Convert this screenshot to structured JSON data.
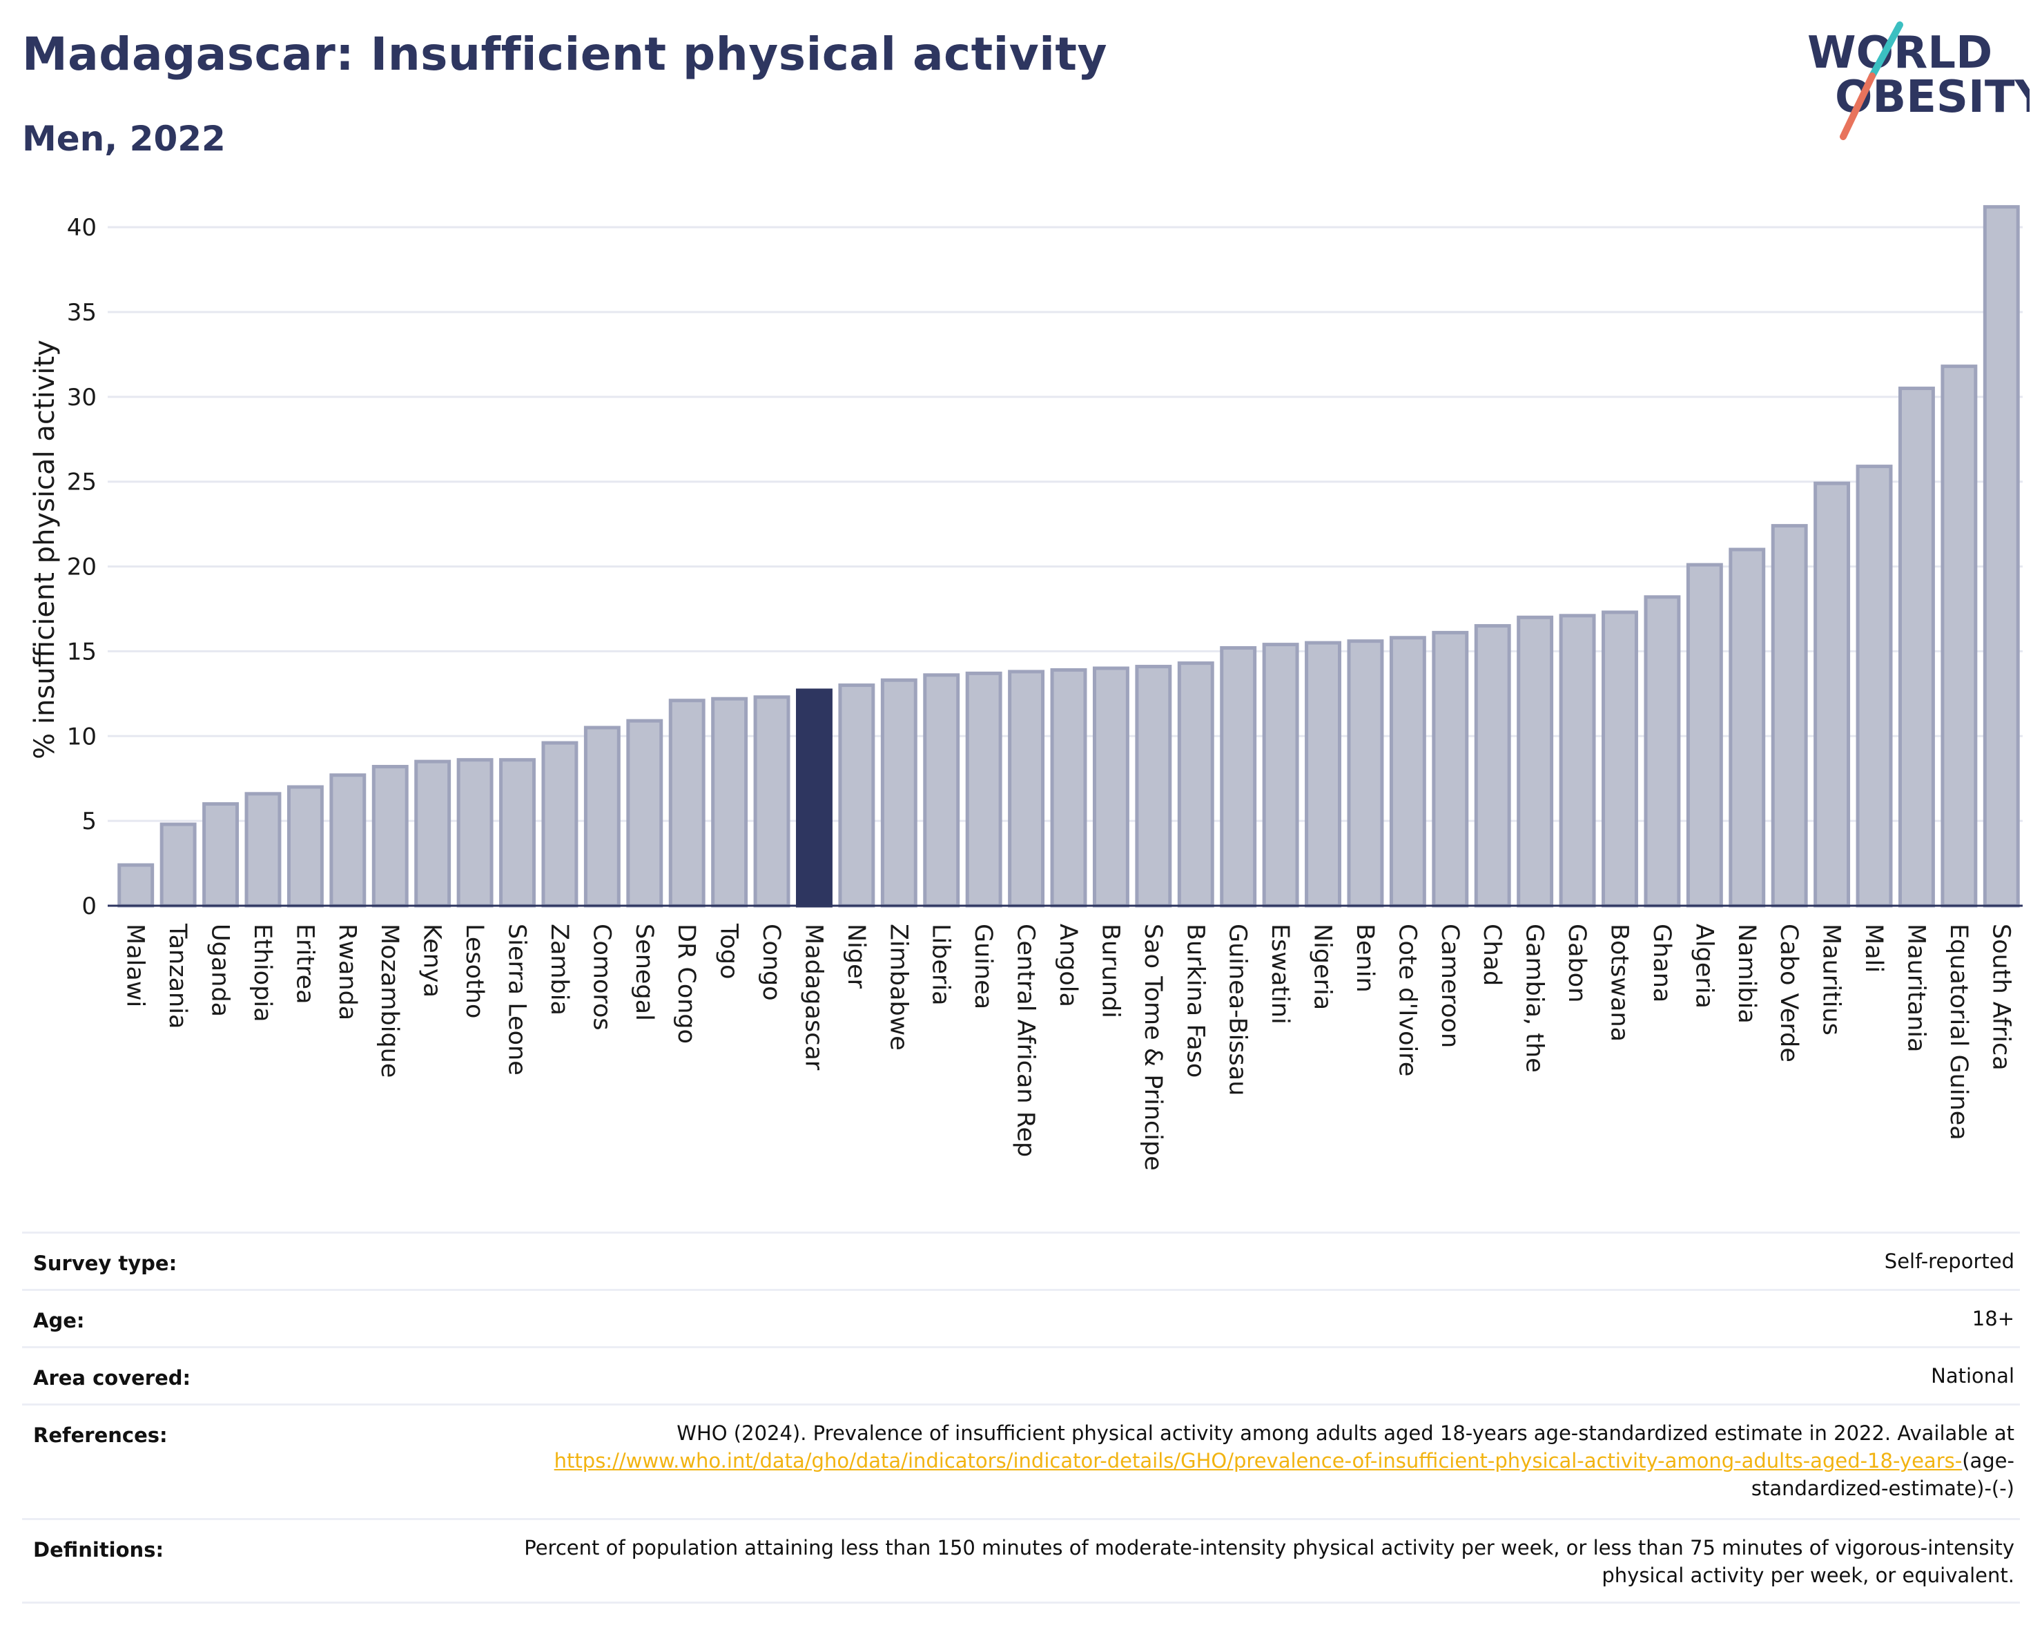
{
  "header": {
    "title": "Madagascar: Insufficient physical activity",
    "subtitle": "Men, 2022"
  },
  "logo": {
    "line1": "WORLD",
    "line2": "OBESITY",
    "colors": {
      "text": "#2e3660",
      "slash_top": "#3bbfc1",
      "slash_bottom": "#e8735c"
    }
  },
  "chart_data": {
    "type": "bar",
    "ylabel": "% insufficient physical activity",
    "ylim": [
      0,
      42
    ],
    "yticks": [
      0,
      5,
      10,
      15,
      20,
      25,
      30,
      35,
      40
    ],
    "grid": true,
    "highlight": "Madagascar",
    "colors": {
      "bar": "#bcc0cf",
      "bar_border": "#9ea3bc",
      "highlight": "#2e3660"
    },
    "categories": [
      "Malawi",
      "Tanzania",
      "Uganda",
      "Ethiopia",
      "Eritrea",
      "Rwanda",
      "Mozambique",
      "Kenya",
      "Lesotho",
      "Sierra Leone",
      "Zambia",
      "Comoros",
      "Senegal",
      "DR Congo",
      "Togo",
      "Congo",
      "Madagascar",
      "Niger",
      "Zimbabwe",
      "Liberia",
      "Guinea",
      "Central African Rep",
      "Angola",
      "Burundi",
      "Sao Tome & Principe",
      "Burkina Faso",
      "Guinea-Bissau",
      "Eswatini",
      "Nigeria",
      "Benin",
      "Cote d'Ivoire",
      "Cameroon",
      "Chad",
      "Gambia, the",
      "Gabon",
      "Botswana",
      "Ghana",
      "Algeria",
      "Namibia",
      "Cabo Verde",
      "Mauritius",
      "Mali",
      "Mauritania",
      "Equatorial Guinea",
      "South Africa"
    ],
    "values": [
      2.4,
      4.8,
      6.0,
      6.6,
      7.0,
      7.7,
      8.2,
      8.5,
      8.6,
      8.6,
      9.6,
      10.5,
      10.9,
      12.1,
      12.2,
      12.3,
      12.7,
      13.0,
      13.3,
      13.6,
      13.7,
      13.8,
      13.9,
      14.0,
      14.1,
      14.3,
      15.2,
      15.4,
      15.5,
      15.6,
      15.8,
      16.1,
      16.5,
      17.0,
      17.1,
      17.3,
      18.2,
      20.1,
      21.0,
      22.4,
      24.9,
      25.9,
      30.5,
      31.8,
      41.2
    ]
  },
  "info": {
    "survey_type": {
      "label": "Survey type:",
      "value": "Self-reported"
    },
    "age": {
      "label": "Age:",
      "value": "18+"
    },
    "area_covered": {
      "label": "Area covered:",
      "value": "National"
    },
    "references": {
      "label": "References:",
      "text": "WHO (2024). Prevalence of insufficient physical activity among adults aged 18-years age-standardized estimate in 2022. Available at",
      "link": "https://www.who.int/data/gho/data/indicators/indicator-details/GHO/prevalence-of-insufficient-physical-activity-among-adults-aged-18-years-",
      "suffix": "(age-standardized-estimate)-(-)"
    },
    "definitions": {
      "label": "Definitions:",
      "value": "Percent of population attaining less than 150 minutes of moderate-intensity physical activity per week, or less than 75 minutes of vigorous-intensity physical activity per week, or equivalent."
    }
  }
}
